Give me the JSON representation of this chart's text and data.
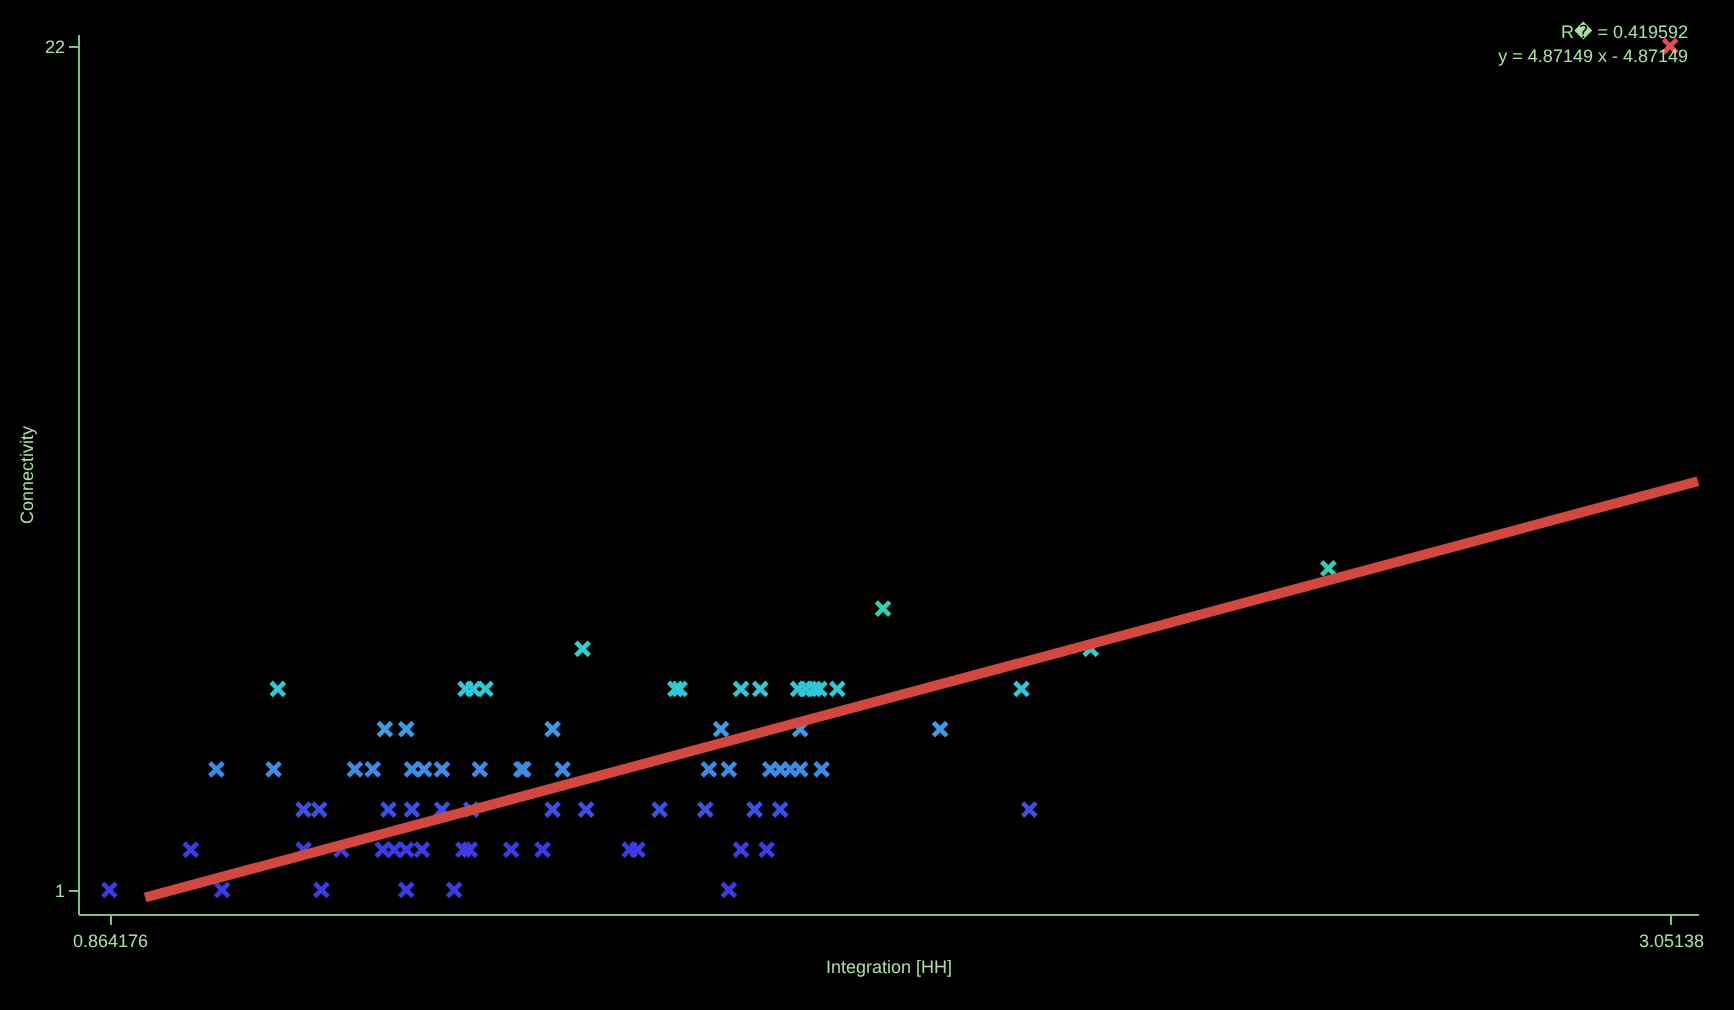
{
  "chart_data": {
    "type": "scatter",
    "xlabel": "Integration [HH]",
    "ylabel": "Connectivity",
    "annotations": [
      "R� = 0.419592",
      "y = 4.87149 x - 4.87149"
    ],
    "xlim": [
      0.82,
      3.09
    ],
    "ylim": [
      0.4,
      22.3
    ],
    "xticks": [
      0.864176,
      3.05138
    ],
    "yticks": [
      1,
      22
    ],
    "grid": false,
    "legend": false,
    "series": [
      {
        "marker": "cross",
        "x": [
          0.864,
          1.022,
          1.161,
          1.28,
          1.347,
          1.732,
          0.978,
          1.136,
          1.189,
          1.247,
          1.263,
          1.28,
          1.302,
          1.36,
          1.369,
          1.427,
          1.471,
          1.593,
          1.604,
          1.749,
          1.785,
          1.136,
          1.158,
          1.255,
          1.288,
          1.33,
          1.371,
          1.485,
          1.532,
          1.635,
          1.699,
          1.768,
          1.804,
          2.153,
          1.014,
          1.094,
          1.208,
          1.233,
          1.288,
          1.305,
          1.33,
          1.383,
          1.441,
          1.444,
          1.499,
          1.704,
          1.732,
          1.79,
          1.804,
          1.818,
          1.832,
          1.862,
          1.25,
          1.28,
          1.485,
          1.721,
          1.832,
          2.028,
          1.1,
          1.363,
          1.374,
          1.391,
          1.657,
          1.663,
          1.749,
          1.776,
          1.829,
          1.84,
          1.851,
          1.859,
          1.884,
          2.142,
          1.527,
          2.239,
          1.948,
          2.572,
          3.051
        ],
        "values": [
          1,
          1,
          1,
          1,
          1,
          1,
          2,
          2,
          2,
          2,
          2,
          2,
          2,
          2,
          2,
          2,
          2,
          2,
          2,
          2,
          2,
          3,
          3,
          3,
          3,
          3,
          3,
          3,
          3,
          3,
          3,
          3,
          3,
          3,
          4,
          4,
          4,
          4,
          4,
          4,
          4,
          4,
          4,
          4,
          4,
          4,
          4,
          4,
          4,
          4,
          4,
          4,
          5,
          5,
          5,
          5,
          5,
          5,
          6,
          6,
          6,
          6,
          6,
          6,
          6,
          6,
          6,
          6,
          6,
          6,
          6,
          6,
          7,
          7,
          8,
          9,
          22
        ],
        "colors": [
          "#3c3ce6",
          "#3c3ce6",
          "#3c3ce6",
          "#3c3ce6",
          "#3c3ce6",
          "#3c3ce6",
          "#3c3ce6",
          "#3c3ce6",
          "#3c3ce6",
          "#3c3ce6",
          "#3c3ce6",
          "#3c3ce6",
          "#3c3ce6",
          "#3c3ce6",
          "#3c3ce6",
          "#3c3ce6",
          "#3c3ce6",
          "#3c3ce6",
          "#3c3ce6",
          "#3c3ce6",
          "#3c3ce6",
          "#3c50e6",
          "#3c50e6",
          "#3c50e6",
          "#3c50e6",
          "#3c50e6",
          "#3c50e6",
          "#3c50e6",
          "#3c50e6",
          "#3c50e6",
          "#3c50e6",
          "#3c50e6",
          "#3c50e6",
          "#3c50e6",
          "#3c8ce6",
          "#3c8ce6",
          "#3c8ce6",
          "#3c8ce6",
          "#3c8ce6",
          "#3c8ce6",
          "#3c8ce6",
          "#3c8ce6",
          "#3c8ce6",
          "#3c8ce6",
          "#3c8ce6",
          "#3c8ce6",
          "#3c8ce6",
          "#3c8ce6",
          "#3c8ce6",
          "#3c8ce6",
          "#3c8ce6",
          "#3c8ce6",
          "#3c9ce6",
          "#3c9ce6",
          "#3c9ce6",
          "#3c9ce6",
          "#3c9ce6",
          "#3c9ce6",
          "#30c8d8",
          "#30c8d8",
          "#30c8d8",
          "#30c8d8",
          "#30c8d8",
          "#30c8d8",
          "#30c8d8",
          "#30c8d8",
          "#30c8d8",
          "#30c8d8",
          "#30c8d8",
          "#30c8d8",
          "#30c8d8",
          "#30c8d8",
          "#30d0d0",
          "#30d0d0",
          "#30d0b0",
          "#30d0b0",
          "#e05050"
        ]
      },
      {
        "type": "line",
        "color": "#d04840",
        "x": [
          0.914,
          3.09
        ],
        "values": [
          0.81,
          11.17
        ]
      }
    ]
  }
}
